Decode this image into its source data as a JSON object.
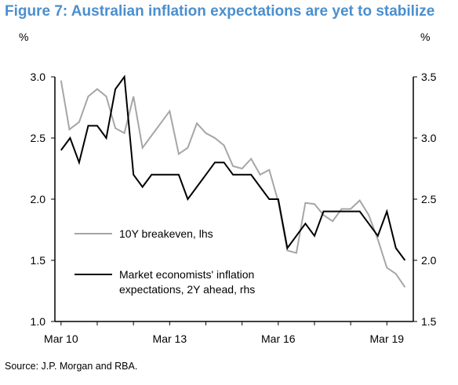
{
  "figure": {
    "title": "Figure 7: Australian inflation expectations are yet to stabilize",
    "source": "Source: J.P. Morgan and RBA."
  },
  "chart_data": {
    "type": "line",
    "title": "Figure 7: Australian inflation expectations are yet to stabilize",
    "left_axis": {
      "unit": "%",
      "range": [
        1.0,
        3.0
      ],
      "ticks": [
        "3.0",
        "2.5",
        "2.0",
        "1.5",
        "1.0"
      ]
    },
    "right_axis": {
      "unit": "%",
      "range": [
        1.5,
        3.5
      ],
      "ticks": [
        "3.5",
        "3.0",
        "2.5",
        "2.0",
        "1.5"
      ]
    },
    "x_axis": {
      "ticks": [
        "Mar 10",
        "Mar 13",
        "Mar 16",
        "Mar 19"
      ]
    },
    "legend_placement": "middle-left",
    "colors": {
      "breakeven": "#a6a6a6",
      "economists": "#000000"
    },
    "series": [
      {
        "name": "10Y breakeven, lhs",
        "axis": "left",
        "x": [
          2010.17,
          2010.4,
          2010.67,
          2010.92,
          2011.17,
          2011.42,
          2011.67,
          2011.92,
          2012.17,
          2012.42,
          2012.67,
          2012.92,
          2013.17,
          2013.42,
          2013.67,
          2013.92,
          2014.17,
          2014.42,
          2014.67,
          2014.92,
          2015.17,
          2015.42,
          2015.67,
          2015.92,
          2016.17,
          2016.42,
          2016.67,
          2016.92,
          2017.17,
          2017.42,
          2017.67,
          2017.92,
          2018.17,
          2018.42,
          2018.67,
          2018.92,
          2019.17,
          2019.42,
          2019.67
        ],
        "values": [
          2.97,
          2.57,
          2.63,
          2.84,
          2.9,
          2.84,
          2.58,
          2.54,
          2.84,
          2.42,
          2.52,
          2.62,
          2.72,
          2.37,
          2.42,
          2.62,
          2.54,
          2.5,
          2.44,
          2.27,
          2.25,
          2.33,
          2.2,
          2.24,
          1.98,
          1.58,
          1.56,
          1.97,
          1.96,
          1.87,
          1.82,
          1.92,
          1.92,
          1.99,
          1.87,
          1.67,
          1.44,
          1.39,
          1.28
        ]
      },
      {
        "name": "Market economists' inflation expectations, 2Y ahead, rhs",
        "axis": "right",
        "x": [
          2010.17,
          2010.42,
          2010.67,
          2010.92,
          2011.17,
          2011.42,
          2011.67,
          2011.92,
          2012.17,
          2012.42,
          2012.67,
          2012.92,
          2013.17,
          2013.42,
          2013.67,
          2013.92,
          2014.17,
          2014.42,
          2014.67,
          2014.92,
          2015.17,
          2015.42,
          2015.67,
          2015.92,
          2016.17,
          2016.42,
          2016.67,
          2016.92,
          2017.17,
          2017.42,
          2017.67,
          2017.92,
          2018.17,
          2018.42,
          2018.67,
          2018.92,
          2019.17,
          2019.42,
          2019.67
        ],
        "values": [
          2.9,
          3.0,
          2.8,
          3.1,
          3.1,
          3.0,
          3.4,
          3.5,
          2.7,
          2.6,
          2.7,
          2.7,
          2.7,
          2.7,
          2.5,
          2.6,
          2.7,
          2.8,
          2.8,
          2.7,
          2.7,
          2.7,
          2.6,
          2.5,
          2.5,
          2.1,
          2.2,
          2.3,
          2.2,
          2.4,
          2.4,
          2.4,
          2.4,
          2.4,
          2.3,
          2.2,
          2.4,
          2.1,
          2.0
        ]
      }
    ]
  }
}
